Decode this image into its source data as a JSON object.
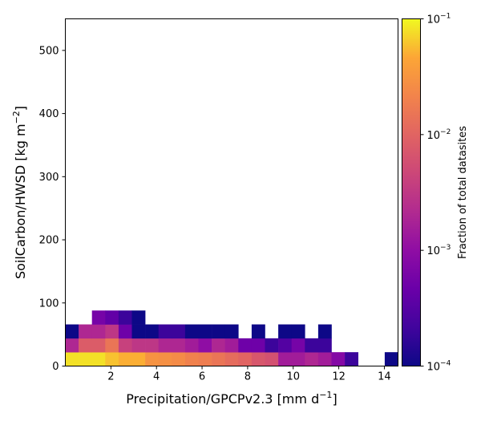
{
  "chart_data": {
    "type": "heatmap",
    "xlabel_main": "Precipitation/GPCPv2.3 [mm d",
    "xlabel_sup": "−1",
    "xlabel_end": "]",
    "ylabel_main": "SoilCarbon/HWSD [kg m",
    "ylabel_sup": "−2",
    "ylabel_end": "]",
    "colorbar_label": "Fraction of total datasites",
    "xlim": [
      0.0,
      14.6
    ],
    "ylim": [
      0,
      550
    ],
    "x_ticks": [
      2,
      4,
      6,
      8,
      10,
      12,
      14
    ],
    "y_ticks": [
      0,
      100,
      200,
      300,
      400,
      500
    ],
    "colorbar_scale": "log",
    "colorbar_range": [
      0.0001,
      0.1
    ],
    "colorbar_ticks": [
      {
        "value": 0.1,
        "base": "10",
        "exp": "−1"
      },
      {
        "value": 0.01,
        "base": "10",
        "exp": "−2"
      },
      {
        "value": 0.001,
        "base": "10",
        "exp": "−3"
      },
      {
        "value": 0.0001,
        "base": "10",
        "exp": "−4"
      }
    ],
    "x_bin_edges": [
      0.0,
      0.584,
      1.168,
      1.752,
      2.336,
      2.92,
      3.504,
      4.088,
      4.672,
      5.256,
      5.84,
      6.424,
      7.008,
      7.592,
      8.176,
      8.76,
      9.344,
      9.928,
      10.512,
      11.096,
      11.68,
      12.264,
      12.848,
      13.432,
      14.016,
      14.6
    ],
    "y_bin_edges": [
      0,
      22,
      44,
      66,
      88
    ],
    "cells": [
      [
        0.08,
        0.08,
        0.08,
        0.06,
        0.05,
        0.05,
        0.03,
        0.028,
        0.025,
        0.02,
        0.018,
        0.015,
        0.012,
        0.01,
        0.007,
        0.006,
        0.0015,
        0.0015,
        0.002,
        0.0015,
        0.0008,
        0.0002,
        null,
        null,
        0.0001
      ],
      [
        0.002,
        0.008,
        0.008,
        0.015,
        0.004,
        0.003,
        0.003,
        0.002,
        0.002,
        0.0015,
        0.001,
        0.002,
        0.0015,
        0.0005,
        0.0005,
        0.0002,
        0.0003,
        0.0006,
        0.0002,
        0.0002,
        null,
        null,
        null,
        null,
        null
      ],
      [
        0.0001,
        0.002,
        0.002,
        0.003,
        0.0005,
        0.0001,
        0.0001,
        0.0002,
        0.0002,
        0.0001,
        0.0001,
        0.0001,
        0.0001,
        null,
        0.0001,
        null,
        0.0001,
        0.0001,
        null,
        0.0001,
        null,
        null,
        null,
        null,
        null
      ],
      [
        null,
        null,
        0.0006,
        0.0004,
        0.0002,
        0.0001,
        null,
        null,
        null,
        null,
        null,
        null,
        null,
        null,
        null,
        null,
        null,
        null,
        null,
        null,
        null,
        null,
        null,
        null,
        null
      ]
    ]
  }
}
